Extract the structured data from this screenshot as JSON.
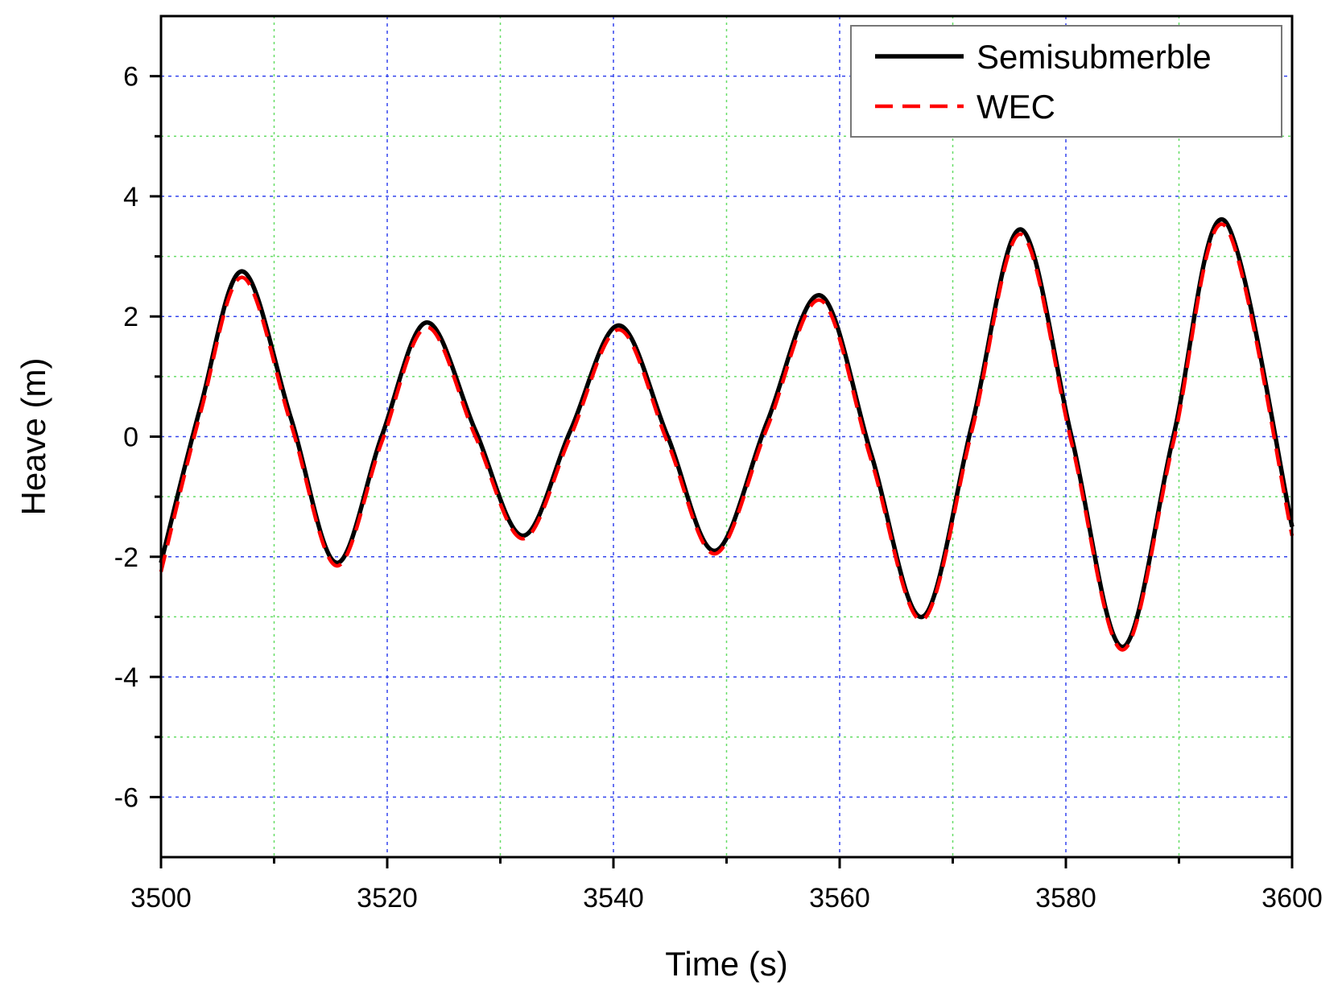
{
  "chart_data": {
    "type": "line",
    "title": "",
    "xlabel": "Time (s)",
    "ylabel": "Heave (m)",
    "xlim": [
      3500,
      3600
    ],
    "ylim": [
      -7,
      7
    ],
    "x_ticks": [
      3500,
      3520,
      3540,
      3560,
      3580,
      3600
    ],
    "y_ticks": [
      -6,
      -4,
      -2,
      0,
      2,
      4,
      6
    ],
    "x_minor_ticks": [
      3510,
      3530,
      3550,
      3570,
      3590
    ],
    "y_minor_ticks": [
      -5,
      -3,
      -1,
      1,
      3,
      5
    ],
    "x_tick_labels": [
      "3500",
      "3520",
      "3540",
      "3560",
      "3580",
      "3600"
    ],
    "y_tick_labels": [
      "-6",
      "-4",
      "-2",
      "0",
      "2",
      "4",
      "6"
    ],
    "grid": true,
    "legend_position": "top-right",
    "colors": {
      "major_grid": "#3344ee",
      "minor_grid": "#66dd66",
      "semisubmersible": "#000000",
      "wec": "#ff0000"
    },
    "series": [
      {
        "name": "Semisubmerble",
        "style": "solid",
        "x": [
          3500,
          3503.5,
          3507.2,
          3511.5,
          3515.5,
          3519.5,
          3523.5,
          3527.8,
          3532.0,
          3536.2,
          3540.5,
          3544.8,
          3549.0,
          3553.6,
          3558.3,
          3562.8,
          3567.3,
          3571.7,
          3576.0,
          3580.5,
          3585.0,
          3589.5,
          3594.0,
          3600
        ],
        "y": [
          -2.1,
          0.5,
          2.75,
          0.3,
          -2.1,
          0.0,
          1.9,
          0.1,
          -1.65,
          0.1,
          1.85,
          0.0,
          -1.9,
          0.25,
          2.35,
          -0.3,
          -3.0,
          0.2,
          3.45,
          0.0,
          -3.5,
          0.0,
          3.6,
          -1.5
        ]
      },
      {
        "name": "WEC",
        "style": "dashed",
        "x": [
          3500,
          3503.5,
          3507.2,
          3511.5,
          3515.5,
          3519.5,
          3523.5,
          3527.8,
          3532.0,
          3536.2,
          3540.5,
          3544.8,
          3549.0,
          3553.6,
          3558.3,
          3562.8,
          3567.3,
          3571.7,
          3576.0,
          3580.5,
          3585.0,
          3589.5,
          3594.0,
          3600
        ],
        "y": [
          -2.25,
          0.4,
          2.65,
          0.2,
          -2.15,
          -0.1,
          1.82,
          0.0,
          -1.7,
          0.0,
          1.78,
          -0.1,
          -1.95,
          0.15,
          2.27,
          -0.4,
          -3.05,
          0.1,
          3.37,
          -0.1,
          -3.55,
          -0.1,
          3.52,
          -1.65
        ]
      }
    ]
  }
}
